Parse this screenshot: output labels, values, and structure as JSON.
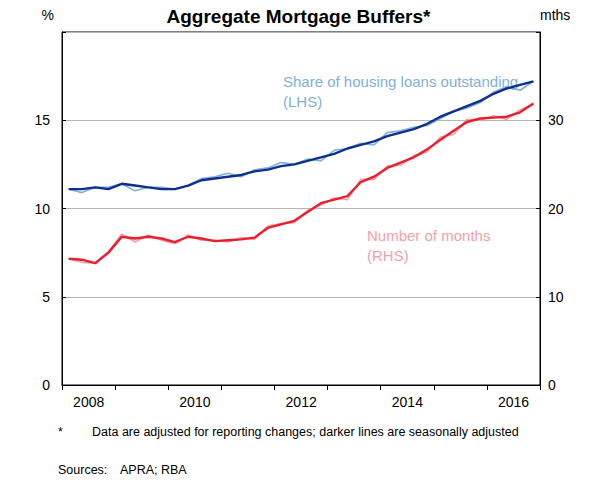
{
  "chart_data": {
    "type": "line",
    "title": "Aggregate Mortgage Buffers*",
    "y_label": "%",
    "y2_label": "mths",
    "categories": [
      null,
      null,
      "2008",
      null,
      null,
      null,
      null,
      null,
      null,
      null,
      "2010",
      null,
      null,
      null,
      null,
      null,
      null,
      null,
      "2012",
      null,
      null,
      null,
      null,
      null,
      null,
      null,
      "2014",
      null,
      null,
      null,
      null,
      null,
      null,
      null,
      "2016",
      null
    ],
    "ylim": [
      0,
      20
    ],
    "yticks": [
      0,
      5,
      10,
      15
    ],
    "y2lim": [
      0,
      40
    ],
    "y2ticks": [
      0,
      10,
      20,
      30
    ],
    "grid": true,
    "series": [
      {
        "color": "#7fb0dc",
        "line_style": "thin",
        "values": [
          11.1,
          10.9,
          11.2,
          11.2,
          11.4,
          11.0,
          11.2,
          11.2,
          11.1,
          11.3,
          11.7,
          11.8,
          12.0,
          11.8,
          12.2,
          12.3,
          12.6,
          12.5,
          12.8,
          12.7,
          13.3,
          13.4,
          13.7,
          13.6,
          14.3,
          14.4,
          14.6,
          14.7,
          15.1,
          15.5,
          15.7,
          16.0,
          16.6,
          16.9,
          16.7,
          17.2
        ]
      },
      {
        "color": "#0f2f8c",
        "line_style": "thick",
        "values": [
          11.1,
          11.1,
          11.2,
          11.1,
          11.4,
          11.3,
          11.2,
          11.1,
          11.1,
          11.3,
          11.6,
          11.7,
          11.8,
          11.9,
          12.1,
          12.2,
          12.4,
          12.5,
          12.7,
          12.9,
          13.1,
          13.4,
          13.6,
          13.8,
          14.1,
          14.3,
          14.5,
          14.8,
          15.2,
          15.5,
          15.8,
          16.1,
          16.5,
          16.8,
          17.0,
          17.2
        ]
      },
      {
        "color": "#f4a0aa",
        "line_style": "thin",
        "axis": "y2",
        "values": [
          14.3,
          13.9,
          13.8,
          15.1,
          17.1,
          16.2,
          17.0,
          16.4,
          16.0,
          17.0,
          16.4,
          16.4,
          16.2,
          16.7,
          16.5,
          18.0,
          18.3,
          18.4,
          19.8,
          20.4,
          21.2,
          21.0,
          23.3,
          23.3,
          24.8,
          24.9,
          26.0,
          26.4,
          28.1,
          28.4,
          30.1,
          30.0,
          30.5,
          30.1,
          31.2,
          31.8
        ]
      },
      {
        "color": "#e8202e",
        "line_style": "thick",
        "axis": "y2",
        "values": [
          14.3,
          14.2,
          13.8,
          15.0,
          16.8,
          16.6,
          16.8,
          16.6,
          16.2,
          16.8,
          16.6,
          16.3,
          16.4,
          16.5,
          16.7,
          17.8,
          18.2,
          18.6,
          19.6,
          20.6,
          21.0,
          21.4,
          23.0,
          23.6,
          24.6,
          25.2,
          25.8,
          26.7,
          27.8,
          28.8,
          29.8,
          30.2,
          30.3,
          30.4,
          30.9,
          31.9
        ]
      }
    ],
    "annotations": [
      "Share of housing loans outstanding",
      "(LHS)",
      "Number of months",
      "(RHS)"
    ],
    "notes": [
      "*",
      "Data are adjusted for reporting changes; darker lines are seasonally adjusted",
      "Sources:",
      "APRA; RBA"
    ]
  }
}
